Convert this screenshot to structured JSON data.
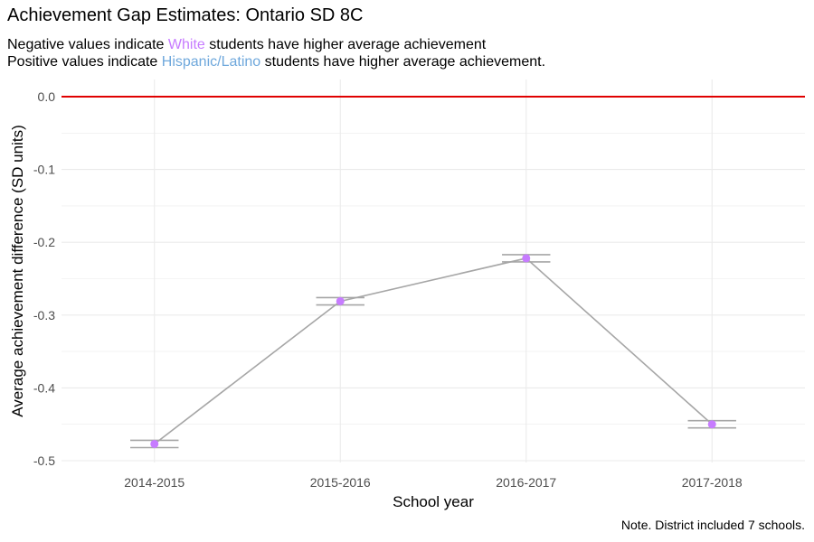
{
  "title": "Achievement Gap Estimates: Ontario SD 8C",
  "subtitle": {
    "line1": {
      "prefix": "Negative values indicate ",
      "group": "White",
      "suffix": " students have higher average achievement"
    },
    "line2": {
      "prefix": "Positive values indicate ",
      "group": "Hispanic/Latino",
      "suffix": " students have higher average achievement."
    }
  },
  "note": "Note. District included 7 schools.",
  "colors": {
    "white_group": "#c77cff",
    "hispanic_group": "#6fa8dc",
    "points": "#c77cff",
    "line": "#a6a6a6",
    "error_bars": "#a6a6a6",
    "reference_line": "#e00000",
    "grid": "#ebebeb"
  },
  "chart_data": {
    "type": "line",
    "categories": [
      "2014-2015",
      "2015-2016",
      "2016-2017",
      "2017-2018"
    ],
    "values": [
      -0.477,
      -0.281,
      -0.222,
      -0.45
    ],
    "error_bars": {
      "lower": [
        -0.482,
        -0.286,
        -0.227,
        -0.455
      ],
      "upper": [
        -0.472,
        -0.276,
        -0.217,
        -0.445
      ]
    },
    "reference_line": 0.0,
    "xlabel": "School year",
    "ylabel": "Average achievement difference (SD units)",
    "ylim": [
      -0.5,
      0.0
    ],
    "yticks": [
      0.0,
      -0.1,
      -0.2,
      -0.3,
      -0.4,
      -0.5
    ],
    "ytick_labels": [
      "0.0",
      "-0.1",
      "-0.2",
      "-0.3",
      "-0.4",
      "-0.5"
    ],
    "grid": true,
    "legend": "none"
  }
}
